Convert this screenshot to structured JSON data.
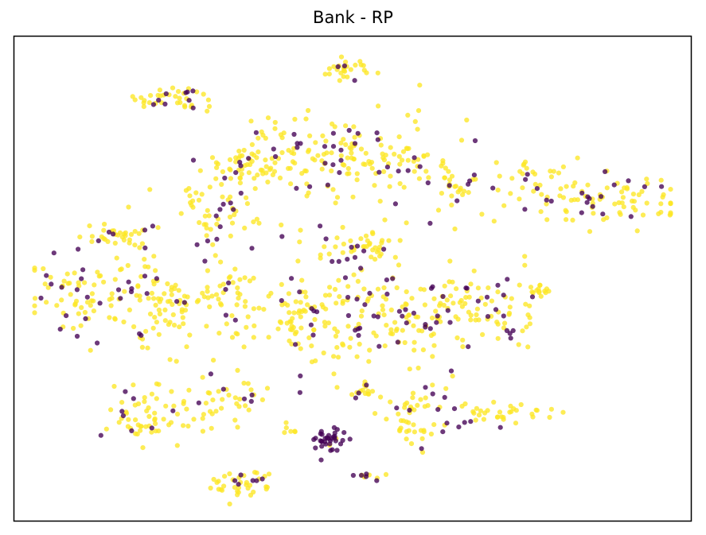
{
  "chart_data": {
    "type": "scatter",
    "title": "Bank - RP",
    "xlabel": "",
    "ylabel": "",
    "xlim": [
      0,
      100
    ],
    "ylim": [
      0,
      100
    ],
    "grid": false,
    "axis_ticks": false,
    "series": [
      {
        "color": "#fde725",
        "class_index": 1
      },
      {
        "color": "#440154",
        "class_index": 0
      }
    ],
    "clusters": [
      {
        "cx": 49.3,
        "cy": 93.5,
        "sx": 1.6,
        "sy": 1.4,
        "n": 28,
        "p_dark": 0.18
      },
      {
        "cx": 23.8,
        "cy": 87.2,
        "sx": 2.9,
        "sy": 1.3,
        "n": 42,
        "p_dark": 0.16
      },
      {
        "cx": 34.5,
        "cy": 73.5,
        "sx": 3.0,
        "sy": 2.3,
        "n": 50,
        "p_dark": 0.12
      },
      {
        "cx": 45.0,
        "cy": 76.5,
        "sx": 6.0,
        "sy": 3.4,
        "n": 85,
        "p_dark": 0.18
      },
      {
        "cx": 58.0,
        "cy": 74.8,
        "sx": 5.2,
        "sy": 3.8,
        "n": 75,
        "p_dark": 0.2
      },
      {
        "cx": 66.0,
        "cy": 69.0,
        "sx": 1.5,
        "sy": 1.8,
        "n": 22,
        "p_dark": 0.25
      },
      {
        "cx": 29.8,
        "cy": 64.0,
        "sx": 3.4,
        "sy": 3.0,
        "n": 50,
        "p_dark": 0.14
      },
      {
        "cx": 14.5,
        "cy": 58.5,
        "sx": 3.0,
        "sy": 1.3,
        "n": 35,
        "p_dark": 0.1
      },
      {
        "cx": 51.3,
        "cy": 56.2,
        "sx": 3.5,
        "sy": 1.6,
        "n": 42,
        "p_dark": 0.22
      },
      {
        "cx": 86.0,
        "cy": 66.5,
        "sx": 6.6,
        "sy": 2.8,
        "n": 100,
        "p_dark": 0.16
      },
      {
        "cx": 76.5,
        "cy": 71.8,
        "sx": 1.5,
        "sy": 0.8,
        "n": 14,
        "p_dark": 0.08
      },
      {
        "cx": 8.5,
        "cy": 47.5,
        "sx": 4.0,
        "sy": 4.5,
        "n": 60,
        "p_dark": 0.22
      },
      {
        "cx": 19.8,
        "cy": 45.0,
        "sx": 4.5,
        "sy": 4.6,
        "n": 95,
        "p_dark": 0.22
      },
      {
        "cx": 32.0,
        "cy": 47.0,
        "sx": 3.2,
        "sy": 4.0,
        "n": 45,
        "p_dark": 0.14
      },
      {
        "cx": 43.0,
        "cy": 42.0,
        "sx": 4.2,
        "sy": 4.6,
        "n": 80,
        "p_dark": 0.12
      },
      {
        "cx": 55.0,
        "cy": 42.5,
        "sx": 4.3,
        "sy": 4.5,
        "n": 90,
        "p_dark": 0.26
      },
      {
        "cx": 66.5,
        "cy": 44.5,
        "sx": 3.6,
        "sy": 4.2,
        "n": 65,
        "p_dark": 0.16
      },
      {
        "cx": 77.8,
        "cy": 47.3,
        "sx": 0.7,
        "sy": 0.8,
        "n": 14,
        "p_dark": 0.0
      },
      {
        "cx": 73.5,
        "cy": 42.5,
        "sx": 2.3,
        "sy": 3.2,
        "n": 30,
        "p_dark": 0.26
      },
      {
        "cx": 22.8,
        "cy": 22.5,
        "sx": 4.3,
        "sy": 2.8,
        "n": 45,
        "p_dark": 0.18
      },
      {
        "cx": 17.2,
        "cy": 21.0,
        "sx": 2.3,
        "sy": 3.0,
        "n": 25,
        "p_dark": 0.1
      },
      {
        "cx": 32.5,
        "cy": 25.5,
        "sx": 3.0,
        "sy": 2.4,
        "n": 30,
        "p_dark": 0.22
      },
      {
        "cx": 51.2,
        "cy": 26.0,
        "sx": 1.5,
        "sy": 1.5,
        "n": 18,
        "p_dark": 0.12
      },
      {
        "cx": 59.5,
        "cy": 20.8,
        "sx": 3.0,
        "sy": 4.0,
        "n": 55,
        "p_dark": 0.24
      },
      {
        "cx": 72.5,
        "cy": 22.5,
        "sx": 3.0,
        "sy": 1.5,
        "n": 35,
        "p_dark": 0.08
      },
      {
        "cx": 46.5,
        "cy": 16.5,
        "sx": 1.3,
        "sy": 1.3,
        "n": 36,
        "p_dark": 0.98
      },
      {
        "cx": 33.5,
        "cy": 7.5,
        "sx": 2.7,
        "sy": 1.4,
        "n": 40,
        "p_dark": 0.14
      },
      {
        "cx": 52.5,
        "cy": 9.5,
        "sx": 1.8,
        "sy": 0.5,
        "n": 10,
        "p_dark": 0.55
      },
      {
        "cx": 42.5,
        "cy": 56.0,
        "sx": 12.0,
        "sy": 14.0,
        "n": 70,
        "p_dark": 0.16
      },
      {
        "cx": 40.5,
        "cy": 19.5,
        "sx": 1.2,
        "sy": 1.0,
        "n": 6,
        "p_dark": 0.0
      }
    ]
  }
}
